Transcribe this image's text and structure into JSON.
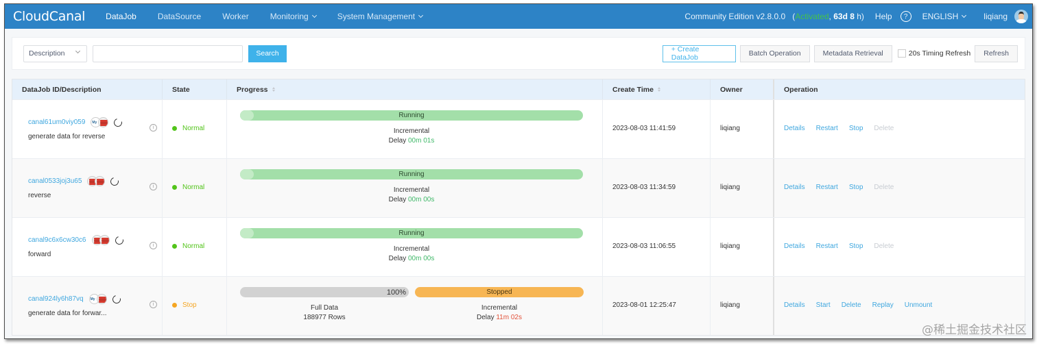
{
  "header": {
    "logo": "CloudCanal",
    "nav": [
      {
        "label": "DataJob",
        "active": true,
        "dropdown": false
      },
      {
        "label": "DataSource",
        "active": false,
        "dropdown": false
      },
      {
        "label": "Worker",
        "active": false,
        "dropdown": false
      },
      {
        "label": "Monitoring",
        "active": false,
        "dropdown": true
      },
      {
        "label": "System Management",
        "active": false,
        "dropdown": true
      }
    ],
    "edition": "Community Edition v2.8.0.0",
    "activation_open": "(",
    "activation_status": "Activated",
    "activation_sep": ", ",
    "activation_days": "63d 8",
    "activation_unit": " h)",
    "help": "Help",
    "help_icon": "?",
    "language": "ENGLISH",
    "user": "liqiang"
  },
  "filter": {
    "select_value": "Description",
    "search_value": "",
    "search_button": "Search",
    "create_button": "+ Create DataJob",
    "batch_button": "Batch Operation",
    "metadata_button": "Metadata Retrieval",
    "timing_refresh_label": "20s Timing Refresh",
    "timing_refresh_checked": false,
    "refresh_button": "Refresh"
  },
  "table": {
    "columns": [
      "DataJob ID/Description",
      "State",
      "Progress",
      "Create Time",
      "Owner",
      "Operation"
    ],
    "rows": [
      {
        "id": "canal61um0viy059",
        "description": "generate data for reverse",
        "source_icon": "mysql",
        "target_icon": "redis",
        "state": "Normal",
        "state_color": "#52c41a",
        "bar_label": "Running",
        "phase": "Incremental",
        "delay_label": "Delay ",
        "delay": "00m 01s",
        "create_time": "2023-08-03 11:41:59",
        "owner": "liqiang",
        "ops": [
          "Details",
          "Restart",
          "Stop",
          "Delete"
        ]
      },
      {
        "id": "canal0533joj3u65",
        "description": "reverse",
        "source_icon": "redis",
        "target_icon": "redis",
        "state": "Normal",
        "state_color": "#52c41a",
        "bar_label": "Running",
        "phase": "Incremental",
        "delay_label": "Delay ",
        "delay": "00m 00s",
        "create_time": "2023-08-03 11:34:59",
        "owner": "liqiang",
        "ops": [
          "Details",
          "Restart",
          "Stop",
          "Delete"
        ]
      },
      {
        "id": "canal9c6x6cw30c6",
        "description": "forward",
        "source_icon": "redis",
        "target_icon": "redis",
        "state": "Normal",
        "state_color": "#52c41a",
        "bar_label": "Running",
        "phase": "Incremental",
        "delay_label": "Delay ",
        "delay": "00m 00s",
        "create_time": "2023-08-03 11:06:55",
        "owner": "liqiang",
        "ops": [
          "Details",
          "Restart",
          "Stop",
          "Delete"
        ]
      },
      {
        "id": "canal924ly6h87vq",
        "description": "generate data for forwar...",
        "source_icon": "mysql",
        "target_icon": "redis",
        "state": "Stop",
        "state_color": "#f5a623",
        "full_percent": "100%",
        "full_label": "Full Data",
        "full_rows": "188977 Rows",
        "bar_label": "Stopped",
        "phase": "Incremental",
        "delay_label": "Delay ",
        "delay": "11m 02s",
        "create_time": "2023-08-01 12:25:47",
        "owner": "liqiang",
        "ops": [
          "Details",
          "Start",
          "Delete",
          "Replay",
          "Unmount"
        ]
      }
    ]
  },
  "watermark": "@稀土掘金技术社区",
  "colors": {
    "header_bg": "#2d83c6",
    "link": "#3fa7df",
    "running": "#a3dfa9",
    "stopped": "#f7b654"
  }
}
